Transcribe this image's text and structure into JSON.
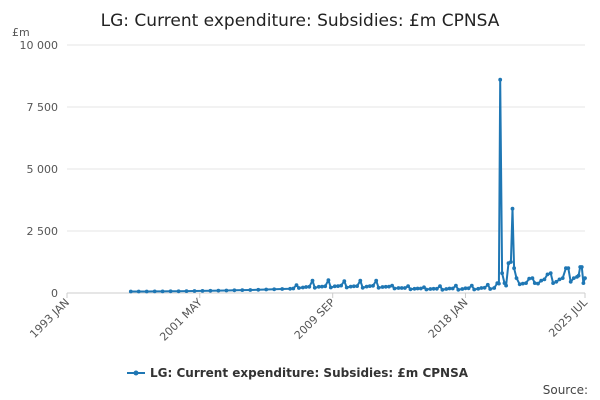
{
  "chart_data": {
    "type": "line",
    "title": "LG: Current expenditure: Subsidies: £m CPNSA",
    "ylabel": "£m",
    "xlabel": "",
    "ylim": [
      0,
      10000
    ],
    "yticks": [
      0,
      2500,
      5000,
      7500,
      10000
    ],
    "ytick_labels": [
      "0",
      "2 500",
      "5 000",
      "7 500",
      "10 000"
    ],
    "xlim": [
      1993.0,
      2025.5
    ],
    "xticks": [
      {
        "x": 1993.0,
        "label": "1993 JAN"
      },
      {
        "x": 2001.33,
        "label": "2001 MAY"
      },
      {
        "x": 2009.67,
        "label": "2009 SEP"
      },
      {
        "x": 2018.0,
        "label": "2018 JAN"
      },
      {
        "x": 2025.5,
        "label": "2025 JUL"
      }
    ],
    "grid": true,
    "legend_position": "bottom",
    "series": [
      {
        "name": "LG: Current expenditure: Subsidies: £m CPNSA",
        "color": "#1f77b4",
        "points": [
          [
            1997.0,
            60
          ],
          [
            1997.5,
            62
          ],
          [
            1998.0,
            60
          ],
          [
            1998.5,
            65
          ],
          [
            1999.0,
            65
          ],
          [
            1999.5,
            70
          ],
          [
            2000.0,
            70
          ],
          [
            2000.5,
            75
          ],
          [
            2001.0,
            80
          ],
          [
            2001.5,
            85
          ],
          [
            2002.0,
            90
          ],
          [
            2002.5,
            95
          ],
          [
            2003.0,
            100
          ],
          [
            2003.5,
            110
          ],
          [
            2004.0,
            115
          ],
          [
            2004.5,
            120
          ],
          [
            2005.0,
            130
          ],
          [
            2005.5,
            140
          ],
          [
            2006.0,
            150
          ],
          [
            2006.5,
            160
          ],
          [
            2007.0,
            170
          ],
          [
            2007.2,
            180
          ],
          [
            2007.4,
            320
          ],
          [
            2007.55,
            200
          ],
          [
            2007.8,
            220
          ],
          [
            2008.0,
            240
          ],
          [
            2008.2,
            250
          ],
          [
            2008.4,
            500
          ],
          [
            2008.55,
            210
          ],
          [
            2008.8,
            250
          ],
          [
            2009.0,
            260
          ],
          [
            2009.2,
            270
          ],
          [
            2009.4,
            520
          ],
          [
            2009.55,
            220
          ],
          [
            2009.8,
            270
          ],
          [
            2010.0,
            280
          ],
          [
            2010.2,
            300
          ],
          [
            2010.4,
            480
          ],
          [
            2010.55,
            220
          ],
          [
            2010.8,
            260
          ],
          [
            2011.0,
            270
          ],
          [
            2011.2,
            280
          ],
          [
            2011.4,
            500
          ],
          [
            2011.55,
            210
          ],
          [
            2011.8,
            260
          ],
          [
            2012.0,
            280
          ],
          [
            2012.2,
            290
          ],
          [
            2012.4,
            500
          ],
          [
            2012.55,
            210
          ],
          [
            2012.8,
            240
          ],
          [
            2013.0,
            250
          ],
          [
            2013.2,
            260
          ],
          [
            2013.4,
            300
          ],
          [
            2013.55,
            180
          ],
          [
            2013.8,
            200
          ],
          [
            2014.0,
            200
          ],
          [
            2014.2,
            200
          ],
          [
            2014.4,
            280
          ],
          [
            2014.55,
            150
          ],
          [
            2014.8,
            170
          ],
          [
            2015.0,
            180
          ],
          [
            2015.2,
            180
          ],
          [
            2015.4,
            230
          ],
          [
            2015.55,
            140
          ],
          [
            2015.8,
            160
          ],
          [
            2016.0,
            170
          ],
          [
            2016.2,
            170
          ],
          [
            2016.4,
            280
          ],
          [
            2016.55,
            130
          ],
          [
            2016.8,
            160
          ],
          [
            2017.0,
            180
          ],
          [
            2017.2,
            180
          ],
          [
            2017.4,
            300
          ],
          [
            2017.55,
            130
          ],
          [
            2017.8,
            160
          ],
          [
            2018.0,
            190
          ],
          [
            2018.2,
            190
          ],
          [
            2018.4,
            300
          ],
          [
            2018.55,
            140
          ],
          [
            2018.8,
            170
          ],
          [
            2019.0,
            200
          ],
          [
            2019.2,
            210
          ],
          [
            2019.4,
            330
          ],
          [
            2019.55,
            160
          ],
          [
            2019.8,
            200
          ],
          [
            2020.0,
            400
          ],
          [
            2020.1,
            380
          ],
          [
            2020.18,
            8600
          ],
          [
            2020.3,
            800
          ],
          [
            2020.45,
            400
          ],
          [
            2020.55,
            300
          ],
          [
            2020.7,
            1200
          ],
          [
            2020.85,
            1250
          ],
          [
            2020.95,
            3400
          ],
          [
            2021.05,
            1000
          ],
          [
            2021.2,
            600
          ],
          [
            2021.4,
            350
          ],
          [
            2021.6,
            380
          ],
          [
            2021.8,
            400
          ],
          [
            2022.0,
            580
          ],
          [
            2022.2,
            600
          ],
          [
            2022.35,
            400
          ],
          [
            2022.55,
            380
          ],
          [
            2022.75,
            500
          ],
          [
            2022.95,
            550
          ],
          [
            2023.15,
            750
          ],
          [
            2023.35,
            800
          ],
          [
            2023.5,
            400
          ],
          [
            2023.7,
            450
          ],
          [
            2023.9,
            550
          ],
          [
            2024.1,
            600
          ],
          [
            2024.3,
            1000
          ],
          [
            2024.45,
            1000
          ],
          [
            2024.6,
            450
          ],
          [
            2024.8,
            600
          ],
          [
            2025.0,
            650
          ],
          [
            2025.1,
            700
          ],
          [
            2025.2,
            1050
          ],
          [
            2025.3,
            1050
          ],
          [
            2025.4,
            400
          ],
          [
            2025.5,
            600
          ]
        ]
      }
    ],
    "source_label": "Source:"
  }
}
